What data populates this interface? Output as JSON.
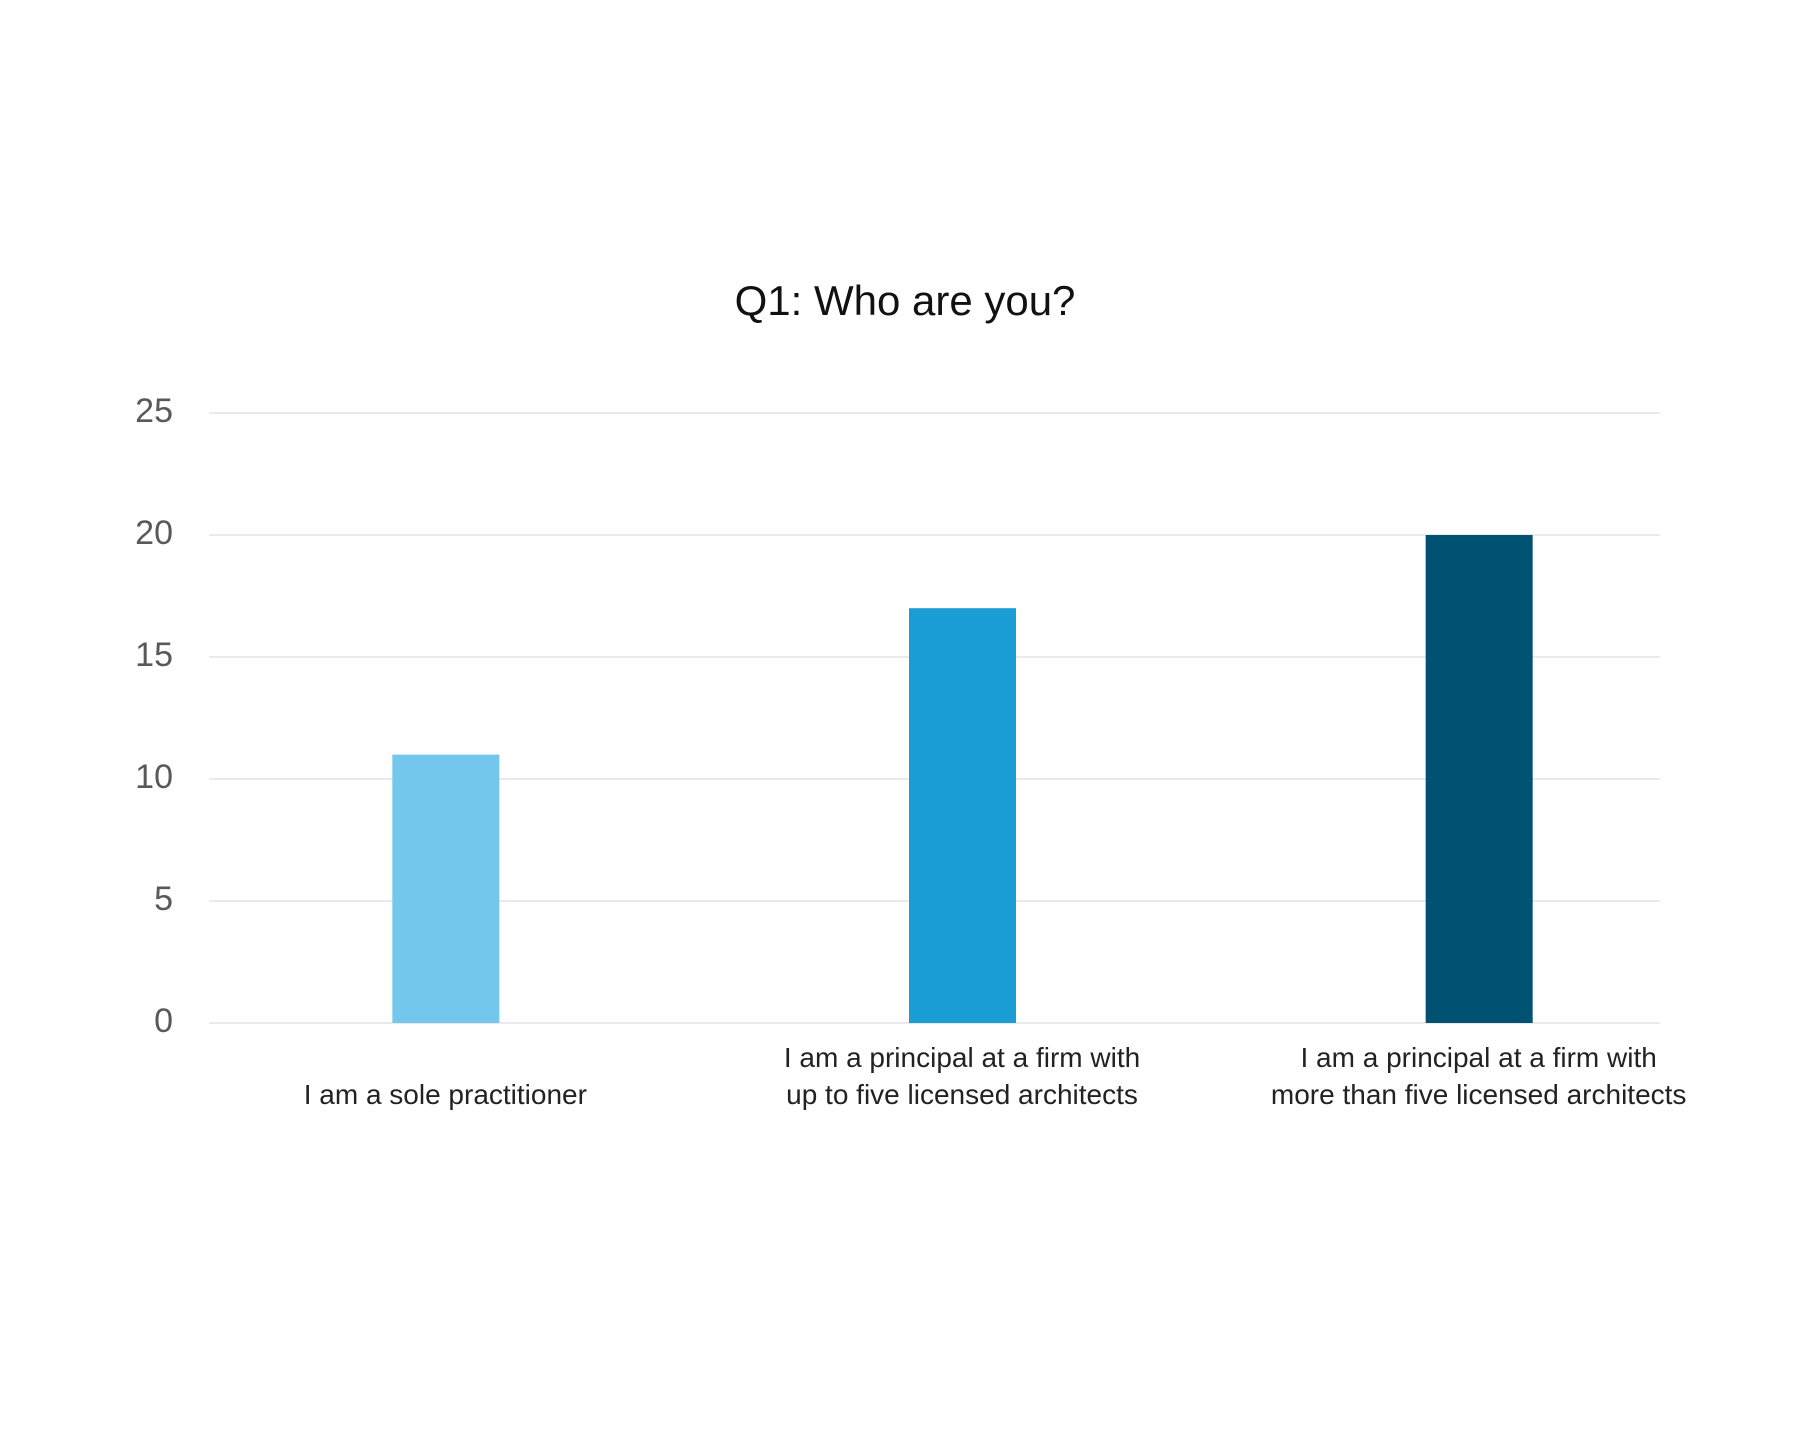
{
  "chart_data": {
    "type": "bar",
    "title": "Q1: Who are you?",
    "categories": [
      "I am a sole practitioner",
      "I am a principal at a firm with up to five licensed architects",
      "I am a principal at a firm with more than five licensed architects"
    ],
    "values": [
      11,
      17,
      20
    ],
    "colors": [
      "#74c7ec",
      "#199dd4",
      "#005273"
    ],
    "ylim": [
      0,
      25
    ],
    "yticks": [
      0,
      5,
      10,
      15,
      20,
      25
    ],
    "grid": true
  }
}
